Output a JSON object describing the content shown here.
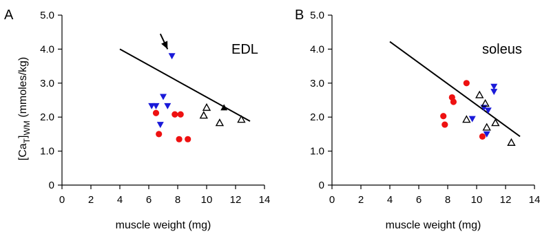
{
  "ylabel_parts": {
    "open": "[Ca",
    "sub1": "T",
    "close": "]",
    "sub2": "WM",
    "units": " (mmoles/kg)"
  },
  "colors": {
    "red": "#ee1111",
    "blue": "#1a1ad9",
    "black": "#000000"
  },
  "chart_data": [
    {
      "type": "scatter",
      "panel": "A",
      "annotation": "EDL",
      "xlabel": "muscle weight (mg)",
      "xlim": [
        0,
        14
      ],
      "ylim": [
        0,
        5
      ],
      "x_ticks": [
        "0",
        "2",
        "4",
        "6",
        "8",
        "10",
        "12",
        "14"
      ],
      "y_ticks": [
        "0",
        "1.0",
        "2.0",
        "3.0",
        "4.0",
        "5.0"
      ],
      "series": [
        {
          "marker": "filled-circle",
          "color": "red",
          "points": [
            [
              6.5,
              2.12
            ],
            [
              6.7,
              1.5
            ],
            [
              7.8,
              2.08
            ],
            [
              8.2,
              2.08
            ],
            [
              8.1,
              1.35
            ],
            [
              8.7,
              1.35
            ]
          ]
        },
        {
          "marker": "filled-down-triangle",
          "color": "blue",
          "points": [
            [
              6.2,
              2.33
            ],
            [
              6.5,
              2.33
            ],
            [
              7.0,
              2.6
            ],
            [
              7.3,
              2.33
            ],
            [
              6.8,
              1.78
            ],
            [
              7.6,
              3.8
            ]
          ]
        },
        {
          "marker": "open-up-triangle",
          "color": "black",
          "points": [
            [
              9.8,
              2.05
            ],
            [
              10.0,
              2.28
            ],
            [
              10.9,
              1.83
            ],
            [
              12.4,
              1.93
            ]
          ]
        },
        {
          "marker": "filled-up-triangle",
          "color": "black",
          "points": [
            [
              11.2,
              2.28
            ]
          ]
        }
      ],
      "fit_line": [
        [
          4,
          4.0
        ],
        [
          13,
          1.88
        ]
      ],
      "arrow": {
        "from": [
          6.8,
          4.45
        ],
        "to": [
          7.3,
          4.0
        ]
      }
    },
    {
      "type": "scatter",
      "panel": "B",
      "annotation": "soleus",
      "xlabel": "muscle weight (mg)",
      "xlim": [
        0,
        14
      ],
      "ylim": [
        0,
        5
      ],
      "x_ticks": [
        "0",
        "2",
        "4",
        "6",
        "8",
        "10",
        "12",
        "14"
      ],
      "y_ticks": [
        "0",
        "1.0",
        "2.0",
        "3.0",
        "4.0",
        "5.0"
      ],
      "series": [
        {
          "marker": "filled-circle",
          "color": "red",
          "points": [
            [
              7.7,
              2.03
            ],
            [
              7.8,
              1.78
            ],
            [
              8.3,
              2.58
            ],
            [
              8.4,
              2.45
            ],
            [
              9.3,
              3.0
            ],
            [
              10.4,
              1.43
            ]
          ]
        },
        {
          "marker": "filled-down-triangle",
          "color": "blue",
          "points": [
            [
              9.7,
              1.95
            ],
            [
              10.5,
              2.28
            ],
            [
              10.8,
              2.2
            ],
            [
              11.2,
              2.9
            ],
            [
              11.2,
              2.75
            ],
            [
              10.7,
              1.5
            ]
          ]
        },
        {
          "marker": "open-up-triangle",
          "color": "black",
          "points": [
            [
              9.3,
              1.93
            ],
            [
              10.2,
              2.65
            ],
            [
              10.6,
              2.4
            ],
            [
              10.7,
              1.7
            ],
            [
              11.3,
              1.83
            ],
            [
              12.4,
              1.25
            ]
          ]
        }
      ],
      "fit_line": [
        [
          4,
          4.22
        ],
        [
          13,
          1.43
        ]
      ]
    }
  ]
}
